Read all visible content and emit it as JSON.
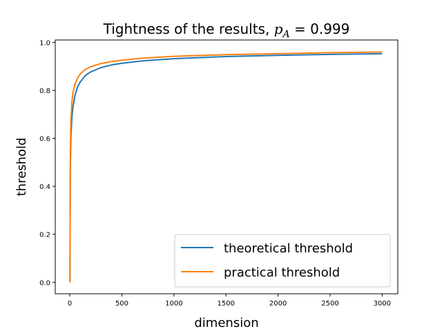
{
  "chart_data": {
    "type": "line",
    "title": {
      "text": "Tightness of the results, ",
      "math_var": "p",
      "math_sub": "A",
      "math_rest": " = 0.999"
    },
    "xlabel": "dimension",
    "ylabel": "threshold",
    "xlim": [
      -140,
      3150
    ],
    "ylim": [
      -0.048,
      1.01
    ],
    "xticks": [
      0,
      500,
      1000,
      1500,
      2000,
      2500,
      3000
    ],
    "xtick_labels": [
      "0",
      "500",
      "1000",
      "1500",
      "2000",
      "2500",
      "3000"
    ],
    "yticks": [
      0.0,
      0.2,
      0.4,
      0.6,
      0.8,
      1.0
    ],
    "ytick_labels": [
      "0.0",
      "0.2",
      "0.4",
      "0.6",
      "0.8",
      "1.0"
    ],
    "grid": false,
    "legend_position": "lower-right",
    "series": [
      {
        "name": "theoretical threshold",
        "color": "#1f77b4",
        "x": [
          1,
          5,
          10,
          20,
          30,
          50,
          75,
          100,
          150,
          200,
          300,
          400,
          500,
          700,
          1000,
          1500,
          2000,
          2500,
          3000
        ],
        "y": [
          0.0,
          0.48,
          0.6,
          0.69,
          0.73,
          0.78,
          0.815,
          0.835,
          0.862,
          0.877,
          0.895,
          0.906,
          0.913,
          0.923,
          0.932,
          0.941,
          0.946,
          0.95,
          0.953
        ]
      },
      {
        "name": "practical threshold",
        "color": "#ff7f0e",
        "x": [
          1,
          5,
          10,
          20,
          30,
          50,
          75,
          100,
          150,
          200,
          300,
          400,
          500,
          700,
          1000,
          1500,
          2000,
          2500,
          3000
        ],
        "y": [
          0.0,
          0.55,
          0.67,
          0.75,
          0.79,
          0.827,
          0.852,
          0.868,
          0.888,
          0.898,
          0.912,
          0.92,
          0.926,
          0.934,
          0.942,
          0.949,
          0.953,
          0.957,
          0.96
        ]
      }
    ]
  }
}
